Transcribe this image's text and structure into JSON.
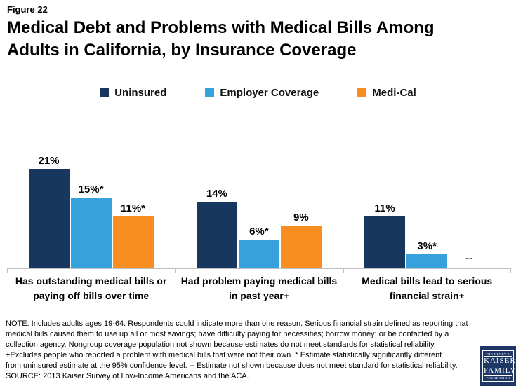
{
  "figure_label": "Figure 22",
  "title": "Medical Debt and Problems with Medical Bills Among\nAdults in California, by Insurance Coverage",
  "colors": {
    "uninsured_navy": "#17375E",
    "employer_blue": "#36A2DB",
    "medical_orange": "#F98E20",
    "axis_gray": "#BFBFBF",
    "logo_navy": "#1F3765"
  },
  "chart_data": {
    "type": "bar",
    "title": "Medical Debt and Problems with Medical Bills Among Adults in California, by Insurance Coverage",
    "categories": [
      "Has outstanding medical bills or paying off bills over time",
      "Had problem paying medical bills in past year+",
      "Medical bills lead to serious financial strain+"
    ],
    "series": [
      {
        "name": "Uninsured",
        "color": "#17375E",
        "values": [
          21,
          14,
          11
        ],
        "labels": [
          "21%",
          "14%",
          "11%"
        ]
      },
      {
        "name": "Employer Coverage",
        "color": "#36A2DB",
        "values": [
          15,
          6,
          3
        ],
        "labels": [
          "15%*",
          "6%*",
          "3%*"
        ]
      },
      {
        "name": "Medi-Cal",
        "color": "#F98E20",
        "values": [
          11,
          9,
          null
        ],
        "labels": [
          "11%*",
          "9%",
          "--"
        ]
      }
    ],
    "ylim": [
      0,
      33
    ],
    "yunit": "%",
    "grid": false,
    "legend_position": "top",
    "value_labels_shown": true,
    "missing_value_marker": "--"
  },
  "notes": "NOTE: Includes adults ages 19-64. Respondents could indicate more than one reason. Serious financial strain defined as reporting that\nmedical bills caused them to use up all or most savings; have difficulty paying for necessities; borrow money; or be contacted by a\ncollection agency. Nongroup coverage population not shown because estimates do not meet standards for statistical reliability.\n+Excludes people who reported a problem with medical bills that were not their own. * Estimate statistically significantly different\nfrom uninsured estimate at the 95% confidence level. -- Estimate not shown because does not meet standard for statistical reliability.\nSOURCE: 2013 Kaiser Survey of Low-Income Americans and the ACA.",
  "logo": {
    "line1": "THE HENRY J.",
    "line2": "KAISER",
    "line3": "FAMILY",
    "line4": "FOUNDATION"
  }
}
